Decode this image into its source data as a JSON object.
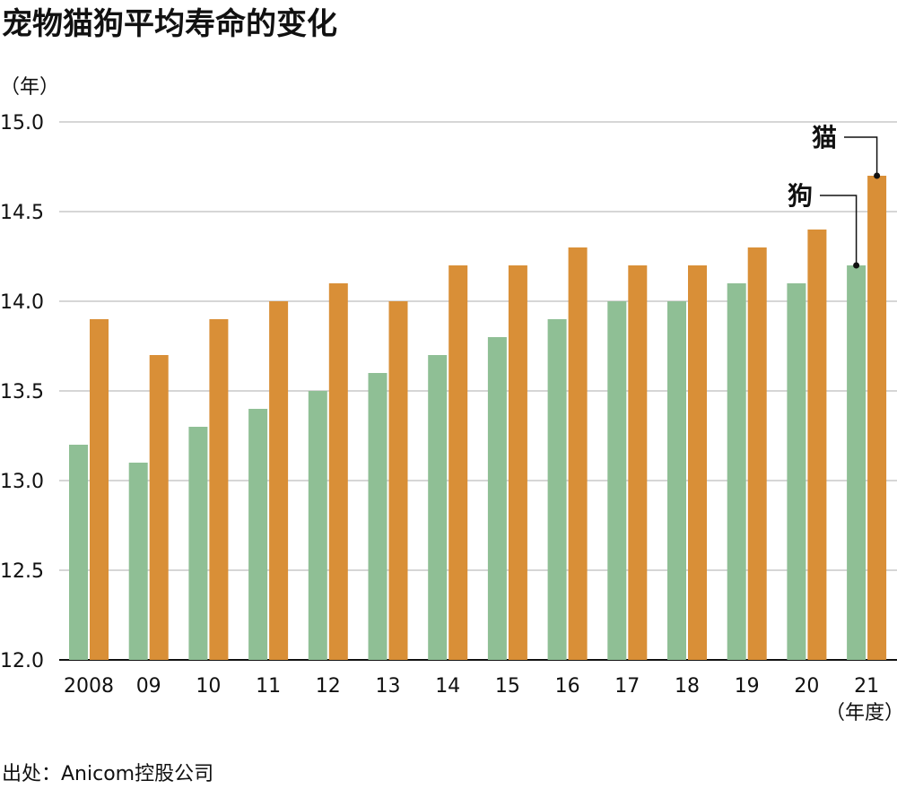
{
  "chart_data": {
    "type": "bar",
    "title": "宠物猫狗平均寿命的变化",
    "y_unit": "（年）",
    "x_unit": "（年度）",
    "categories": [
      "2008",
      "09",
      "10",
      "11",
      "12",
      "13",
      "14",
      "15",
      "16",
      "17",
      "18",
      "19",
      "20",
      "21"
    ],
    "series": [
      {
        "name": "狗",
        "color": "#8fbf95",
        "values": [
          13.2,
          13.1,
          13.3,
          13.4,
          13.5,
          13.6,
          13.7,
          13.8,
          13.9,
          14.0,
          14.0,
          14.1,
          14.1,
          14.2
        ]
      },
      {
        "name": "猫",
        "color": "#d98f37",
        "values": [
          13.9,
          13.7,
          13.9,
          14.0,
          14.1,
          14.0,
          14.2,
          14.2,
          14.3,
          14.2,
          14.2,
          14.3,
          14.4,
          14.7
        ]
      }
    ],
    "ylim": [
      12.0,
      15.0
    ],
    "yticks": [
      "12.0",
      "12.5",
      "13.0",
      "13.5",
      "14.0",
      "14.5",
      "15.0"
    ],
    "grid": true,
    "legend": "direct labels on last bars"
  },
  "source": "出处：Anicom控股公司"
}
